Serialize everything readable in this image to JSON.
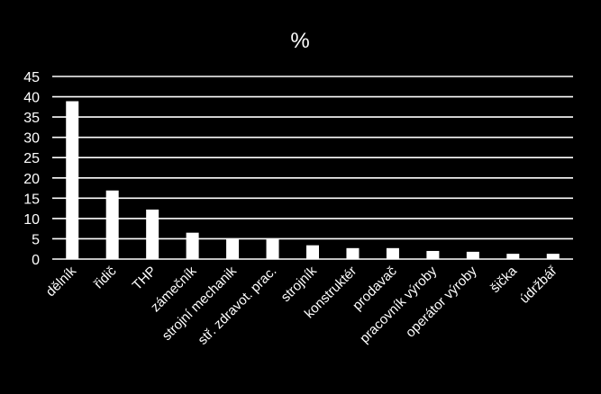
{
  "chart_data": {
    "type": "bar",
    "title": "%",
    "xlabel": "",
    "ylabel": "",
    "ylim": [
      0,
      45
    ],
    "yticks": [
      0,
      5,
      10,
      15,
      20,
      25,
      30,
      35,
      40,
      45
    ],
    "grid": true,
    "legend": "none",
    "categories": [
      "dělník",
      "řidič",
      "THP",
      "zámečník",
      "strojní mechanik",
      "stř. zdravot. prac.",
      "strojník",
      "konstruktér",
      "prodavač",
      "pracovník výroby",
      "operátor výroby",
      "šička",
      "údržbář"
    ],
    "values": [
      38.9,
      16.9,
      12.2,
      6.5,
      5.0,
      5.0,
      3.4,
      2.7,
      2.7,
      2.0,
      1.8,
      1.3,
      1.3
    ]
  },
  "colors": {
    "background": "#000000",
    "bar": "#ffffff",
    "grid": "#ffffff",
    "text": "#ffffff"
  }
}
